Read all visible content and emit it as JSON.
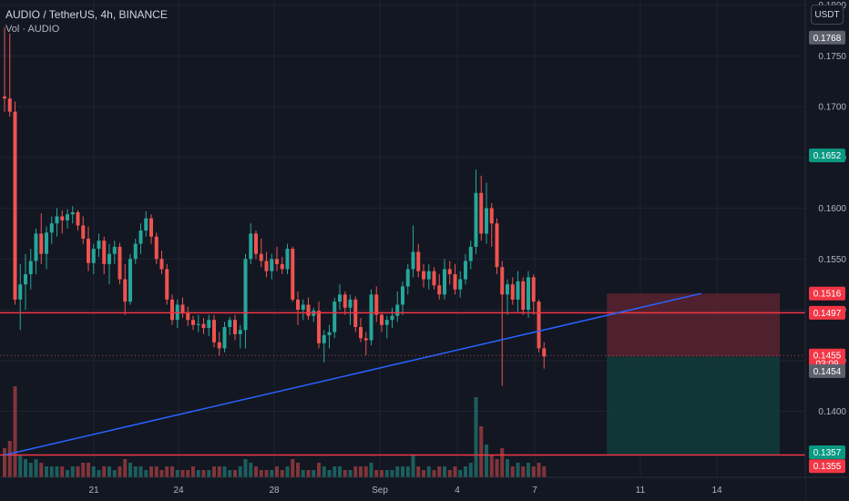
{
  "header": {
    "title": "AUDIO / TetherUS, 4h, BINANCE",
    "vol_label": "Vol · AUDIO",
    "currency_button": "USDT"
  },
  "colors": {
    "background": "#131722",
    "grid": "#1f2230",
    "up": "#26a69a",
    "down": "#ef5350",
    "horizontal_line": "#f23645",
    "trendline": "#2962ff",
    "stop_zone": "#5b2330",
    "target_zone": "#123a38",
    "axis_text": "#b2b5be"
  },
  "chart_data": {
    "type": "candlestick",
    "symbol": "AUDIO / TetherUS",
    "interval": "4h",
    "exchange": "BINANCE",
    "ylim": [
      0.1335,
      0.1805
    ],
    "y_ticks": [
      "0.1800",
      "0.1750",
      "0.1700",
      "0.1650",
      "0.1600",
      "0.1550",
      "0.1500",
      "0.1450",
      "0.1400"
    ],
    "x_ticks": [
      "21",
      "24",
      "28",
      "Sep",
      "4",
      "7",
      "11",
      "14"
    ],
    "candles": [
      [
        0.171,
        0.1778,
        0.1695,
        0.1708
      ],
      [
        0.1708,
        0.1772,
        0.169,
        0.1695
      ],
      [
        0.1695,
        0.1705,
        0.1505,
        0.151
      ],
      [
        0.151,
        0.1545,
        0.148,
        0.1525
      ],
      [
        0.1525,
        0.1555,
        0.15,
        0.1535
      ],
      [
        0.1535,
        0.156,
        0.152,
        0.1548
      ],
      [
        0.1548,
        0.158,
        0.1535,
        0.1575
      ],
      [
        0.1575,
        0.1595,
        0.1545,
        0.1555
      ],
      [
        0.1555,
        0.1582,
        0.154,
        0.1576
      ],
      [
        0.1576,
        0.1592,
        0.1565,
        0.1585
      ],
      [
        0.1585,
        0.16,
        0.1572,
        0.1592
      ],
      [
        0.1592,
        0.1598,
        0.1575,
        0.1588
      ],
      [
        0.1588,
        0.1599,
        0.158,
        0.1594
      ],
      [
        0.1594,
        0.1602,
        0.1585,
        0.1596
      ],
      [
        0.1596,
        0.1598,
        0.1578,
        0.1583
      ],
      [
        0.1583,
        0.1592,
        0.1565,
        0.157
      ],
      [
        0.157,
        0.1582,
        0.1538,
        0.1546
      ],
      [
        0.1546,
        0.1565,
        0.1535,
        0.156
      ],
      [
        0.156,
        0.1575,
        0.1552,
        0.1568
      ],
      [
        0.1568,
        0.1572,
        0.1535,
        0.1545
      ],
      [
        0.1545,
        0.1565,
        0.1525,
        0.1555
      ],
      [
        0.1555,
        0.1568,
        0.1545,
        0.1562
      ],
      [
        0.1562,
        0.1566,
        0.1525,
        0.153
      ],
      [
        0.153,
        0.1545,
        0.1495,
        0.1508
      ],
      [
        0.1508,
        0.1555,
        0.1505,
        0.155
      ],
      [
        0.155,
        0.157,
        0.1545,
        0.1565
      ],
      [
        0.1565,
        0.1585,
        0.1555,
        0.1578
      ],
      [
        0.1578,
        0.1597,
        0.1572,
        0.159
      ],
      [
        0.159,
        0.1594,
        0.1565,
        0.1572
      ],
      [
        0.1572,
        0.1576,
        0.1545,
        0.155
      ],
      [
        0.155,
        0.1558,
        0.1535,
        0.154
      ],
      [
        0.154,
        0.1545,
        0.1505,
        0.151
      ],
      [
        0.151,
        0.1515,
        0.1485,
        0.149
      ],
      [
        0.149,
        0.151,
        0.1482,
        0.1505
      ],
      [
        0.1505,
        0.1512,
        0.1492,
        0.1497
      ],
      [
        0.1497,
        0.1503,
        0.1484,
        0.149
      ],
      [
        0.149,
        0.1494,
        0.148,
        0.1485
      ],
      [
        0.1485,
        0.1495,
        0.1478,
        0.1486
      ],
      [
        0.1486,
        0.1492,
        0.1476,
        0.1482
      ],
      [
        0.1482,
        0.1495,
        0.1474,
        0.149
      ],
      [
        0.149,
        0.1495,
        0.1463,
        0.1468
      ],
      [
        0.1468,
        0.1478,
        0.1455,
        0.1462
      ],
      [
        0.1462,
        0.1488,
        0.1458,
        0.1483
      ],
      [
        0.1483,
        0.1493,
        0.1475,
        0.149
      ],
      [
        0.149,
        0.1495,
        0.147,
        0.1476
      ],
      [
        0.1476,
        0.1485,
        0.1462,
        0.148
      ],
      [
        0.148,
        0.1555,
        0.1462,
        0.155
      ],
      [
        0.155,
        0.1585,
        0.1545,
        0.1575
      ],
      [
        0.1575,
        0.1578,
        0.155,
        0.1555
      ],
      [
        0.1555,
        0.157,
        0.1542,
        0.1548
      ],
      [
        0.1548,
        0.1557,
        0.1532,
        0.1538
      ],
      [
        0.1538,
        0.1555,
        0.153,
        0.155
      ],
      [
        0.155,
        0.1562,
        0.1538,
        0.1545
      ],
      [
        0.1545,
        0.1552,
        0.1535,
        0.154
      ],
      [
        0.154,
        0.1565,
        0.1535,
        0.156
      ],
      [
        0.156,
        0.1562,
        0.1508,
        0.151
      ],
      [
        0.151,
        0.1518,
        0.1485,
        0.15
      ],
      [
        0.15,
        0.151,
        0.149,
        0.1505
      ],
      [
        0.1505,
        0.1512,
        0.149,
        0.1494
      ],
      [
        0.1494,
        0.1502,
        0.1488,
        0.1499
      ],
      [
        0.1499,
        0.1508,
        0.1462,
        0.1467
      ],
      [
        0.1467,
        0.148,
        0.1448,
        0.1475
      ],
      [
        0.1475,
        0.1485,
        0.1462,
        0.1478
      ],
      [
        0.1478,
        0.1512,
        0.1472,
        0.1508
      ],
      [
        0.1508,
        0.1525,
        0.15,
        0.1515
      ],
      [
        0.1515,
        0.1518,
        0.1495,
        0.1502
      ],
      [
        0.1502,
        0.1515,
        0.1485,
        0.151
      ],
      [
        0.151,
        0.1513,
        0.1478,
        0.1483
      ],
      [
        0.1483,
        0.1492,
        0.1468,
        0.1472
      ],
      [
        0.1472,
        0.1478,
        0.1455,
        0.147
      ],
      [
        0.147,
        0.152,
        0.1465,
        0.1515
      ],
      [
        0.1515,
        0.1523,
        0.1488,
        0.1495
      ],
      [
        0.1495,
        0.1498,
        0.1478,
        0.1485
      ],
      [
        0.1485,
        0.1494,
        0.1472,
        0.149
      ],
      [
        0.149,
        0.1502,
        0.1482,
        0.1494
      ],
      [
        0.1494,
        0.1518,
        0.1488,
        0.1505
      ],
      [
        0.1505,
        0.1528,
        0.1495,
        0.1523
      ],
      [
        0.1523,
        0.1545,
        0.1515,
        0.154
      ],
      [
        0.154,
        0.1583,
        0.1532,
        0.1557
      ],
      [
        0.1557,
        0.1565,
        0.1532,
        0.1538
      ],
      [
        0.1538,
        0.1545,
        0.1522,
        0.153
      ],
      [
        0.153,
        0.1545,
        0.152,
        0.1538
      ],
      [
        0.1538,
        0.1542,
        0.152,
        0.1524
      ],
      [
        0.1524,
        0.1535,
        0.151,
        0.1515
      ],
      [
        0.1515,
        0.155,
        0.151,
        0.154
      ],
      [
        0.154,
        0.1548,
        0.1525,
        0.1535
      ],
      [
        0.1535,
        0.1545,
        0.1515,
        0.152
      ],
      [
        0.152,
        0.1538,
        0.1512,
        0.153
      ],
      [
        0.153,
        0.1555,
        0.1525,
        0.1548
      ],
      [
        0.1548,
        0.1568,
        0.154,
        0.1562
      ],
      [
        0.1562,
        0.1638,
        0.1555,
        0.1615
      ],
      [
        0.1615,
        0.1632,
        0.1568,
        0.1575
      ],
      [
        0.1575,
        0.1625,
        0.1565,
        0.16
      ],
      [
        0.16,
        0.1605,
        0.1562,
        0.1585
      ],
      [
        0.1585,
        0.159,
        0.1535,
        0.1542
      ],
      [
        0.1542,
        0.1548,
        0.1425,
        0.1515
      ],
      [
        0.1515,
        0.153,
        0.1495,
        0.1525
      ],
      [
        0.1525,
        0.1532,
        0.1505,
        0.151
      ],
      [
        0.151,
        0.1538,
        0.1498,
        0.1528
      ],
      [
        0.1528,
        0.1532,
        0.1495,
        0.15
      ],
      [
        0.15,
        0.1538,
        0.1492,
        0.1532
      ],
      [
        0.1532,
        0.1535,
        0.1495,
        0.1508
      ],
      [
        0.1508,
        0.151,
        0.1458,
        0.1462
      ],
      [
        0.1462,
        0.1468,
        0.1442,
        0.1454
      ]
    ],
    "volume": [
      8,
      10,
      25,
      6,
      5,
      4,
      5,
      4,
      3,
      3,
      3,
      3,
      2,
      3,
      3,
      4,
      4,
      3,
      2,
      3,
      3,
      2,
      3,
      5,
      4,
      3,
      3,
      2,
      3,
      3,
      2,
      3,
      3,
      2,
      2,
      2,
      3,
      2,
      2,
      2,
      3,
      3,
      3,
      2,
      2,
      3,
      5,
      4,
      3,
      2,
      2,
      2,
      3,
      2,
      3,
      5,
      4,
      2,
      2,
      2,
      4,
      3,
      2,
      3,
      3,
      2,
      2,
      3,
      3,
      3,
      4,
      2,
      2,
      2,
      2,
      3,
      3,
      3,
      6,
      3,
      2,
      3,
      2,
      3,
      3,
      2,
      3,
      2,
      3,
      4,
      22,
      14,
      9,
      6,
      5,
      8,
      5,
      3,
      4,
      3,
      4,
      3,
      4,
      3
    ],
    "horizontal_lines": [
      0.1497,
      0.1357
    ],
    "trendline": {
      "from_index": 0,
      "from_price": 0.1357,
      "to_index": 133,
      "to_price": 0.1516
    },
    "position": {
      "entry": 0.1454,
      "stop": 0.1516,
      "target": 0.1357,
      "from_index": 115,
      "to_index": 148
    },
    "price_labels": [
      {
        "text": "0.1768",
        "price": 0.1768,
        "style": "gray"
      },
      {
        "text": "0.1652",
        "price": 0.1652,
        "style": "green"
      },
      {
        "text": "0.1516",
        "price": 0.1516,
        "style": "red"
      },
      {
        "text": "0.1497",
        "price": 0.1497,
        "style": "red"
      },
      {
        "text": "0.1455",
        "price": 0.1455,
        "style": "red",
        "sub": "03:09"
      },
      {
        "text": "0.1454",
        "price": 0.1454,
        "style": "gray"
      },
      {
        "text": "0.1357",
        "price": 0.1357,
        "style": "green"
      },
      {
        "text": "0.1355",
        "price": 0.1355,
        "style": "red"
      }
    ]
  }
}
